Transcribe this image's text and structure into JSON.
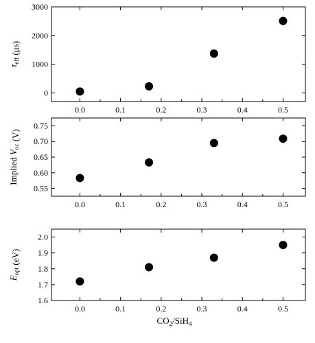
{
  "chart_data": [
    {
      "type": "scatter",
      "ylabel": "τ_eff (μs)",
      "x": [
        0.0,
        0.17,
        0.33,
        0.5
      ],
      "y": [
        50,
        230,
        1370,
        2510
      ],
      "xlim": [
        -0.07,
        0.555
      ],
      "ylim": [
        -300,
        3000
      ],
      "xticks": [
        "0.0",
        "0.1",
        "0.2",
        "0.3",
        "0.4",
        "0.5"
      ],
      "yticks": [
        "0",
        "1000",
        "2000",
        "3000"
      ],
      "marker_color": "#000000"
    },
    {
      "type": "scatter",
      "ylabel": "Implied V_oc (V)",
      "x": [
        0.0,
        0.17,
        0.33,
        0.5
      ],
      "y": [
        0.583,
        0.633,
        0.695,
        0.709
      ],
      "xlim": [
        -0.07,
        0.555
      ],
      "ylim": [
        0.525,
        0.775
      ],
      "xticks": [
        "0.0",
        "0.1",
        "0.2",
        "0.3",
        "0.4",
        "0.5"
      ],
      "yticks": [
        "0.55",
        "0.60",
        "0.65",
        "0.70",
        "0.75"
      ],
      "marker_color": "#000000"
    },
    {
      "type": "scatter",
      "ylabel": "E_opt (eV)",
      "x": [
        0.0,
        0.17,
        0.33,
        0.5
      ],
      "y": [
        1.72,
        1.81,
        1.87,
        1.95
      ],
      "xlim": [
        -0.07,
        0.555
      ],
      "ylim": [
        1.6,
        2.05
      ],
      "xticks": [
        "0.0",
        "0.1",
        "0.2",
        "0.3",
        "0.4",
        "0.5"
      ],
      "yticks": [
        "1.6",
        "1.7",
        "1.8",
        "1.9",
        "2.0"
      ],
      "marker_color": "#000000"
    }
  ],
  "xlabel": "CO₂/SiH₄"
}
